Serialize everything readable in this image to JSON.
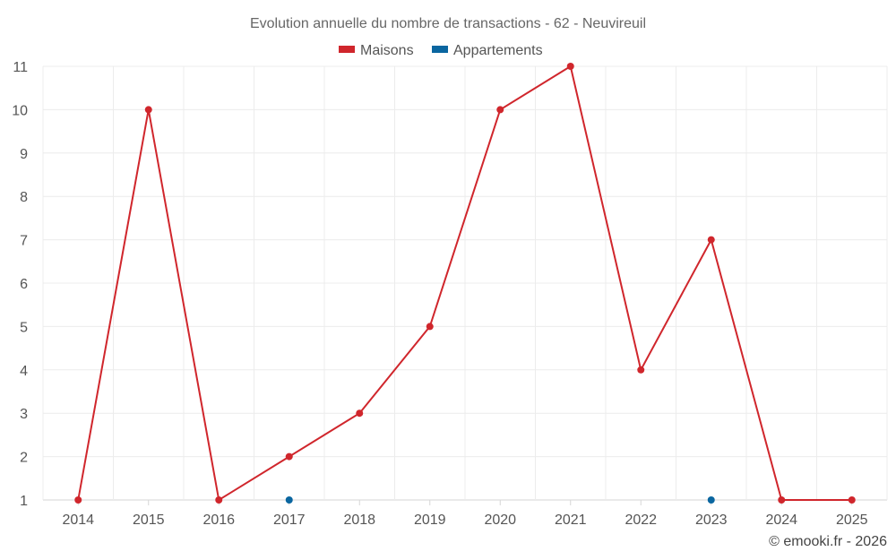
{
  "chart_data": {
    "type": "line",
    "title": "Evolution annuelle du nombre de transactions - 62 - Neuvireuil",
    "categories": [
      "2014",
      "2015",
      "2016",
      "2017",
      "2018",
      "2019",
      "2020",
      "2021",
      "2022",
      "2023",
      "2024",
      "2025"
    ],
    "ylim": [
      1,
      11
    ],
    "yticks": [
      1,
      2,
      3,
      4,
      5,
      6,
      7,
      8,
      9,
      10,
      11
    ],
    "grid": true,
    "legend_position": "top-center",
    "series": [
      {
        "name": "Maisons",
        "color": "#d0262c",
        "values": [
          1,
          10,
          1,
          2,
          3,
          5,
          10,
          11,
          4,
          7,
          1,
          1
        ]
      },
      {
        "name": "Appartements",
        "color": "#0a66a0",
        "values": [
          null,
          null,
          null,
          1,
          null,
          null,
          null,
          null,
          null,
          1,
          null,
          null
        ]
      }
    ],
    "credit": "© emooki.fr - 2026"
  }
}
